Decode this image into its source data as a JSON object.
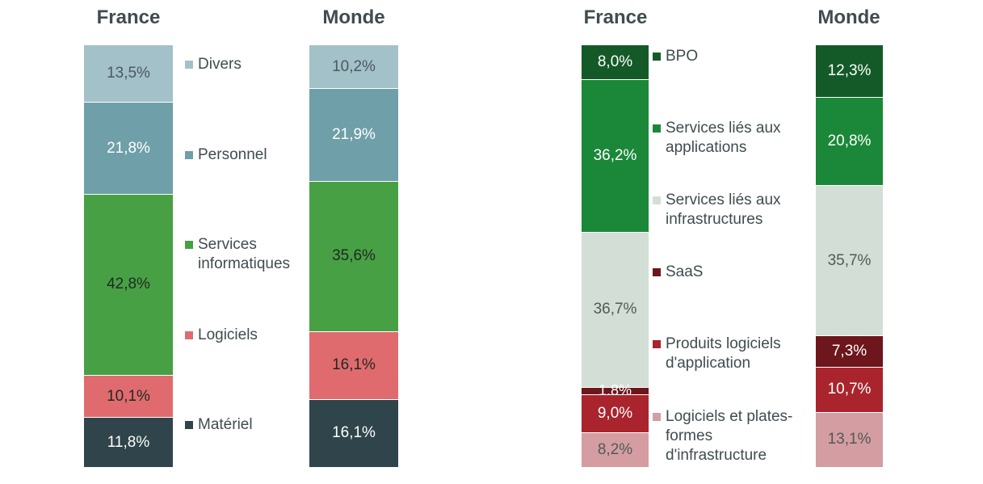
{
  "chart_data": [
    {
      "type": "bar",
      "stacked": true,
      "percent": true,
      "categories": [
        "France",
        "Monde"
      ],
      "series": [
        {
          "name": "Divers",
          "color": "#a3c1c8",
          "text_color": "#4a5a60",
          "values": [
            13.5,
            10.2
          ],
          "labels": [
            "13,5%",
            "10,2%"
          ]
        },
        {
          "name": "Personnel",
          "color": "#6f9fa8",
          "text_color": "#ffffff",
          "values": [
            21.8,
            21.9
          ],
          "labels": [
            "21,8%",
            "21,9%"
          ]
        },
        {
          "name": "Services\ninformatiques",
          "color": "#48a045",
          "text_color": "#1e2a22",
          "values": [
            42.8,
            35.6
          ],
          "labels": [
            "42,8%",
            "35,6%"
          ]
        },
        {
          "name": "Logiciels",
          "color": "#e06b6f",
          "text_color": "#1e2a22",
          "values": [
            10.1,
            16.1
          ],
          "labels": [
            "10,1%",
            "16,1%"
          ]
        },
        {
          "name": "Matériel",
          "color": "#2f454b",
          "text_color": "#ffffff",
          "values": [
            11.8,
            16.1
          ],
          "labels": [
            "11,8%",
            "16,1%"
          ]
        }
      ]
    },
    {
      "type": "bar",
      "stacked": true,
      "percent": true,
      "categories": [
        "France",
        "Monde"
      ],
      "series": [
        {
          "name": "BPO",
          "color": "#145a28",
          "text_color": "#ffffff",
          "values": [
            8.0,
            12.3
          ],
          "labels": [
            "8,0%",
            "12,3%"
          ]
        },
        {
          "name": "Services liés aux\napplications",
          "color": "#1a8838",
          "text_color": "#ffffff",
          "values": [
            36.2,
            20.8
          ],
          "labels": [
            "36,2%",
            "20,8%"
          ]
        },
        {
          "name": "Services liés aux\ninfrastructures",
          "color": "#d3dfd6",
          "text_color": "#505a56",
          "values": [
            36.7,
            35.7
          ],
          "labels": [
            "36,7%",
            "35,7%"
          ]
        },
        {
          "name": "SaaS",
          "color": "#6d161c",
          "text_color": "#ffffff",
          "values": [
            1.8,
            7.3
          ],
          "labels": [
            "1,8%",
            "7,3%"
          ]
        },
        {
          "name": "Produits logiciels\nd'application",
          "color": "#a9242d",
          "text_color": "#ffffff",
          "values": [
            9.0,
            10.7
          ],
          "labels": [
            "9,0%",
            "10,7%"
          ]
        },
        {
          "name": "Logiciels et plates-\nformes\nd'infrastructure",
          "color": "#d49da2",
          "text_color": "#505a56",
          "values": [
            8.2,
            13.1
          ],
          "labels": [
            "8,2%",
            "13,1%"
          ]
        }
      ]
    }
  ]
}
